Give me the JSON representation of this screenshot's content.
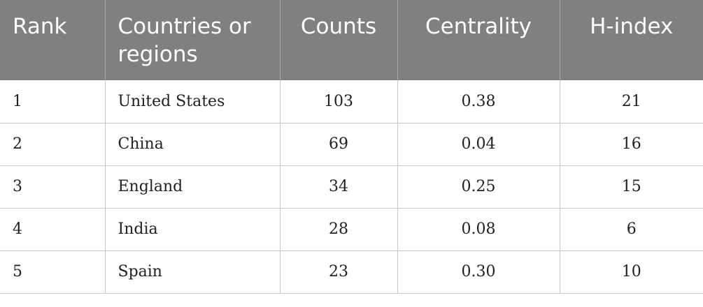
{
  "table": {
    "header": [
      "Rank",
      "Countries or regions",
      "Counts",
      "Centrality",
      "H-index"
    ],
    "rows": [
      [
        "1",
        "United States",
        "103",
        "0.38",
        "21"
      ],
      [
        "2",
        "China",
        "69",
        "0.04",
        "16"
      ],
      [
        "3",
        "England",
        "34",
        "0.25",
        "15"
      ],
      [
        "4",
        "India",
        "28",
        "0.08",
        "6"
      ],
      [
        "5",
        "Spain",
        "23",
        "0.30",
        "10"
      ]
    ]
  }
}
